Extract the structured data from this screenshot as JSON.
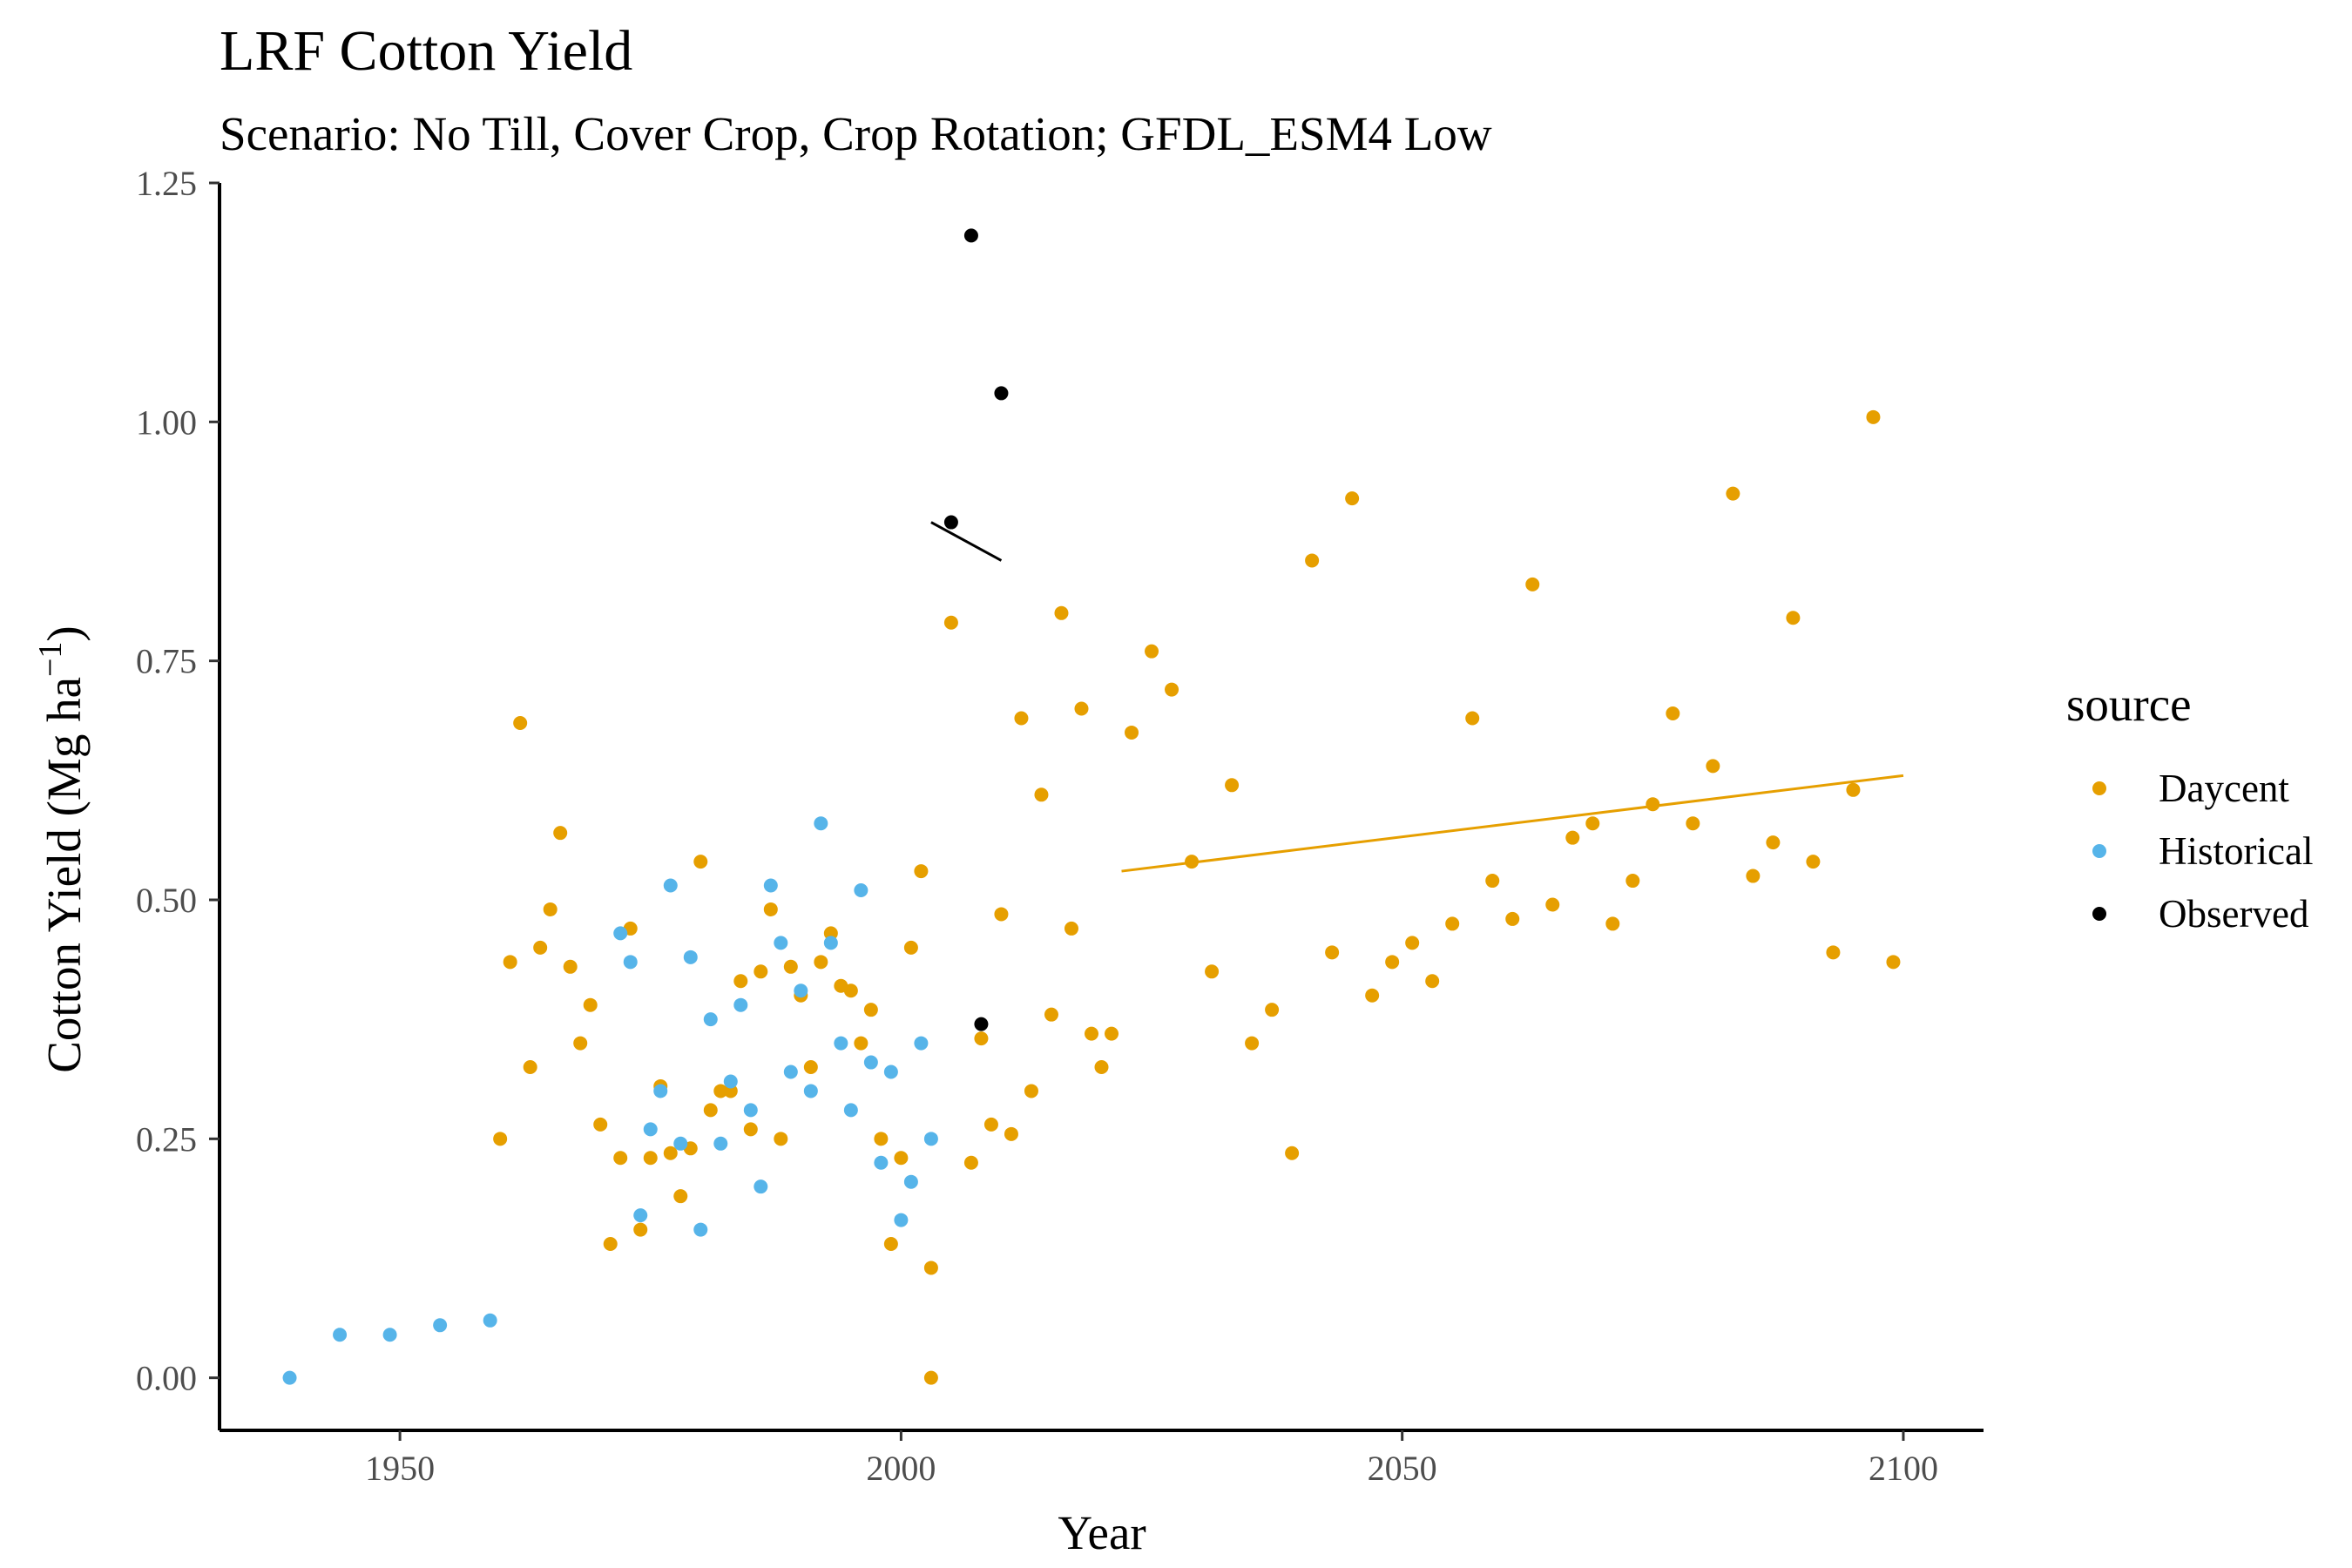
{
  "chart_data": {
    "type": "scatter",
    "title": "LRF Cotton Yield",
    "subtitle": "Scenario: No Till, Cover Crop, Crop Rotation; GFDL_ESM4 Low",
    "xlabel": "Year",
    "ylabel_main": "Cotton Yield (Mg ha",
    "ylabel_sup": "−1",
    "ylabel_close": ")",
    "xlim": [
      1932,
      2108
    ],
    "ylim": [
      -0.055,
      1.25
    ],
    "x_ticks": [
      1950,
      2000,
      2050,
      2100
    ],
    "x_tick_labels": [
      "1950",
      "2000",
      "2050",
      "2100"
    ],
    "y_ticks": [
      0,
      0.25,
      0.5,
      0.75,
      1.0,
      1.25
    ],
    "y_tick_labels": [
      "0.00",
      "0.25",
      "0.50",
      "0.75",
      "1.00",
      "1.25"
    ],
    "grid": false,
    "legend": {
      "title": "source",
      "position": "right",
      "entries": [
        "Daycent",
        "Historical",
        "Observed"
      ]
    },
    "series": [
      {
        "name": "Daycent",
        "color": "#E69F00",
        "points": [
          [
            1960,
            0.25
          ],
          [
            1961,
            0.435
          ],
          [
            1962,
            0.685
          ],
          [
            1963,
            0.325
          ],
          [
            1964,
            0.45
          ],
          [
            1965,
            0.49
          ],
          [
            1966,
            0.57
          ],
          [
            1967,
            0.43
          ],
          [
            1968,
            0.35
          ],
          [
            1969,
            0.39
          ],
          [
            1970,
            0.265
          ],
          [
            1971,
            0.14
          ],
          [
            1972,
            0.23
          ],
          [
            1973,
            0.47
          ],
          [
            1974,
            0.155
          ],
          [
            1975,
            0.23
          ],
          [
            1976,
            0.305
          ],
          [
            1977,
            0.235
          ],
          [
            1978,
            0.19
          ],
          [
            1979,
            0.24
          ],
          [
            1980,
            0.54
          ],
          [
            1981,
            0.28
          ],
          [
            1982,
            0.3
          ],
          [
            1983,
            0.3
          ],
          [
            1984,
            0.415
          ],
          [
            1985,
            0.26
          ],
          [
            1986,
            0.425
          ],
          [
            1987,
            0.49
          ],
          [
            1988,
            0.25
          ],
          [
            1989,
            0.43
          ],
          [
            1990,
            0.4
          ],
          [
            1991,
            0.325
          ],
          [
            1992,
            0.435
          ],
          [
            1993,
            0.465
          ],
          [
            1994,
            0.41
          ],
          [
            1995,
            0.405
          ],
          [
            1996,
            0.35
          ],
          [
            1997,
            0.385
          ],
          [
            1998,
            0.25
          ],
          [
            1999,
            0.14
          ],
          [
            2000,
            0.23
          ],
          [
            2001,
            0.45
          ],
          [
            2002,
            0.53
          ],
          [
            2003,
            0.115
          ],
          [
            2003,
            0.0
          ],
          [
            2005,
            0.79
          ],
          [
            2007,
            0.225
          ],
          [
            2008,
            0.355
          ],
          [
            2009,
            0.265
          ],
          [
            2010,
            0.485
          ],
          [
            2011,
            0.255
          ],
          [
            2012,
            0.69
          ],
          [
            2013,
            0.3
          ],
          [
            2014,
            0.61
          ],
          [
            2015,
            0.38
          ],
          [
            2016,
            0.8
          ],
          [
            2017,
            0.47
          ],
          [
            2018,
            0.7
          ],
          [
            2019,
            0.36
          ],
          [
            2020,
            0.325
          ],
          [
            2021,
            0.36
          ],
          [
            2023,
            0.675
          ],
          [
            2025,
            0.76
          ],
          [
            2027,
            0.72
          ],
          [
            2029,
            0.54
          ],
          [
            2031,
            0.425
          ],
          [
            2033,
            0.62
          ],
          [
            2035,
            0.35
          ],
          [
            2037,
            0.385
          ],
          [
            2039,
            0.235
          ],
          [
            2041,
            0.855
          ],
          [
            2043,
            0.445
          ],
          [
            2045,
            0.92
          ],
          [
            2047,
            0.4
          ],
          [
            2049,
            0.435
          ],
          [
            2051,
            0.455
          ],
          [
            2053,
            0.415
          ],
          [
            2055,
            0.475
          ],
          [
            2057,
            0.69
          ],
          [
            2059,
            0.52
          ],
          [
            2061,
            0.48
          ],
          [
            2063,
            0.83
          ],
          [
            2065,
            0.495
          ],
          [
            2067,
            0.565
          ],
          [
            2069,
            0.58
          ],
          [
            2071,
            0.475
          ],
          [
            2073,
            0.52
          ],
          [
            2075,
            0.6
          ],
          [
            2077,
            0.695
          ],
          [
            2079,
            0.58
          ],
          [
            2081,
            0.64
          ],
          [
            2083,
            0.925
          ],
          [
            2085,
            0.525
          ],
          [
            2087,
            0.56
          ],
          [
            2089,
            0.795
          ],
          [
            2091,
            0.54
          ],
          [
            2093,
            0.445
          ],
          [
            2095,
            0.615
          ],
          [
            2097,
            1.005
          ],
          [
            2099,
            0.435
          ]
        ]
      },
      {
        "name": "Historical",
        "color": "#56B4E9",
        "points": [
          [
            1939,
            0.0
          ],
          [
            1944,
            0.045
          ],
          [
            1949,
            0.045
          ],
          [
            1954,
            0.055
          ],
          [
            1959,
            0.06
          ],
          [
            1972,
            0.465
          ],
          [
            1973,
            0.435
          ],
          [
            1974,
            0.17
          ],
          [
            1975,
            0.26
          ],
          [
            1976,
            0.3
          ],
          [
            1977,
            0.515
          ],
          [
            1978,
            0.245
          ],
          [
            1979,
            0.44
          ],
          [
            1980,
            0.155
          ],
          [
            1981,
            0.375
          ],
          [
            1982,
            0.245
          ],
          [
            1983,
            0.31
          ],
          [
            1984,
            0.39
          ],
          [
            1985,
            0.28
          ],
          [
            1986,
            0.2
          ],
          [
            1987,
            0.515
          ],
          [
            1988,
            0.455
          ],
          [
            1989,
            0.32
          ],
          [
            1990,
            0.405
          ],
          [
            1991,
            0.3
          ],
          [
            1992,
            0.58
          ],
          [
            1993,
            0.455
          ],
          [
            1994,
            0.35
          ],
          [
            1995,
            0.28
          ],
          [
            1996,
            0.51
          ],
          [
            1997,
            0.33
          ],
          [
            1998,
            0.225
          ],
          [
            1999,
            0.32
          ],
          [
            2000,
            0.165
          ],
          [
            2001,
            0.205
          ],
          [
            2002,
            0.35
          ],
          [
            2003,
            0.25
          ]
        ]
      },
      {
        "name": "Observed",
        "color": "#000000",
        "points": [
          [
            2005,
            0.895
          ],
          [
            2007,
            1.195
          ],
          [
            2008,
            0.37
          ],
          [
            2010,
            1.03
          ]
        ]
      }
    ],
    "trend_lines": [
      {
        "series": "Daycent",
        "color": "#E69F00",
        "from": [
          2022,
          0.53
        ],
        "to": [
          2100,
          0.63
        ]
      },
      {
        "series": "Observed",
        "color": "#000000",
        "from": [
          2003,
          0.895
        ],
        "to": [
          2010,
          0.855
        ]
      }
    ]
  }
}
